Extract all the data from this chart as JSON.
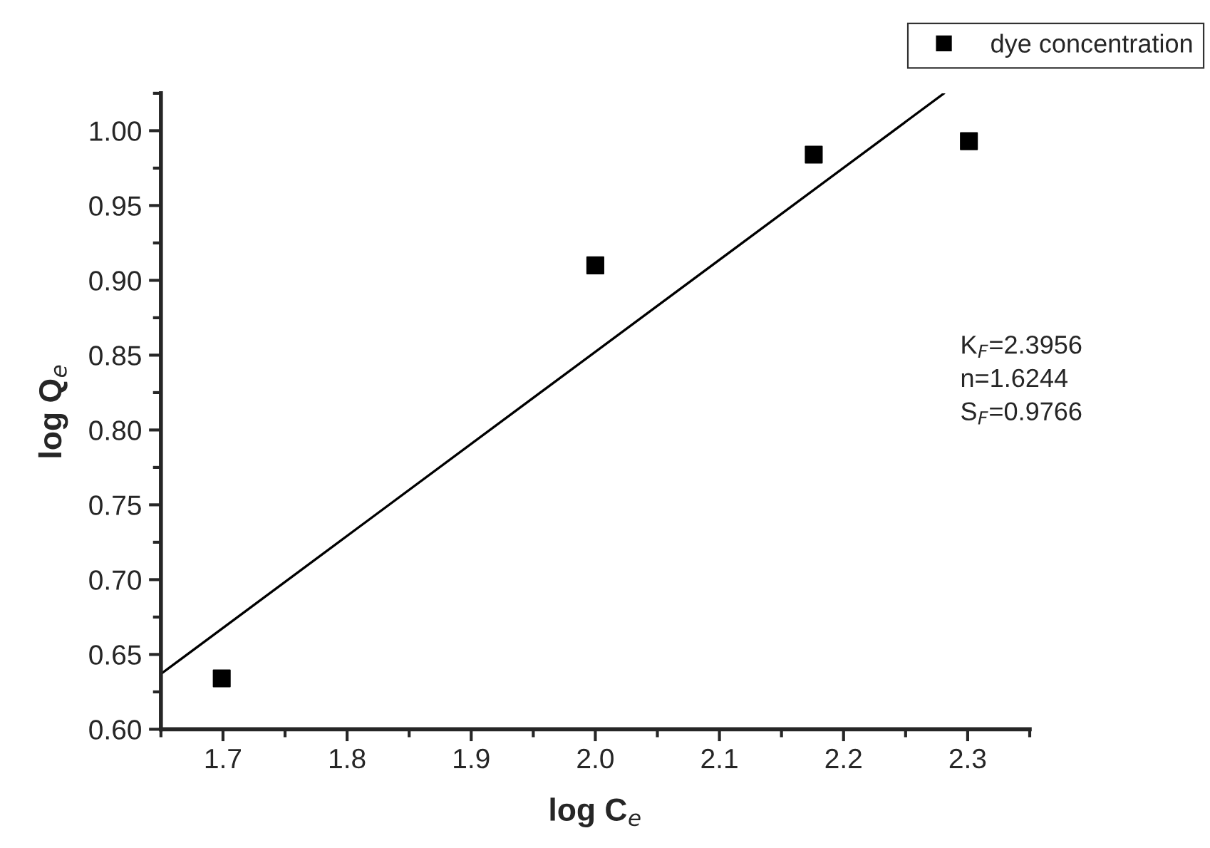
{
  "chart_data": {
    "type": "scatter",
    "xlabel": "log C$_{e}$",
    "ylabel": "log Q$_{e}$",
    "series": [
      {
        "name": "dye concentration",
        "color": "#000000",
        "marker": "square",
        "x": [
          1.699,
          2.0,
          2.176,
          2.301
        ],
        "values": [
          0.634,
          0.91,
          0.984,
          0.993
        ]
      },
      {
        "type": "line",
        "color": "#000000",
        "line_style": "solid",
        "x": [
          1.65,
          2.281
        ],
        "values": [
          0.637,
          1.025
        ]
      }
    ],
    "xlim": [
      1.65,
      2.35
    ],
    "ylim": [
      0.6,
      1.025
    ],
    "xticks": [
      1.7,
      1.8,
      1.9,
      {
        "value": 2.0,
        "label": "2.0"
      },
      2.1,
      2.2,
      2.3
    ],
    "yticks": [
      {
        "value": 0.6,
        "label": "0.60"
      },
      {
        "value": 0.65,
        "label": "0.65"
      },
      {
        "value": 0.7,
        "label": "0.70"
      },
      {
        "value": 0.75,
        "label": "0.75"
      },
      {
        "value": 0.8,
        "label": "0.80"
      },
      {
        "value": 0.85,
        "label": "0.85"
      },
      {
        "value": 0.9,
        "label": "0.90"
      },
      {
        "value": 0.95,
        "label": "0.95"
      },
      {
        "value": 1.0,
        "label": "1.00"
      }
    ],
    "annotations": [
      "K$_{F}$=2.3956\nn=1.6244\nS$_{F}$=0.9766"
    ],
    "legend": "top right",
    "grid": false
  }
}
